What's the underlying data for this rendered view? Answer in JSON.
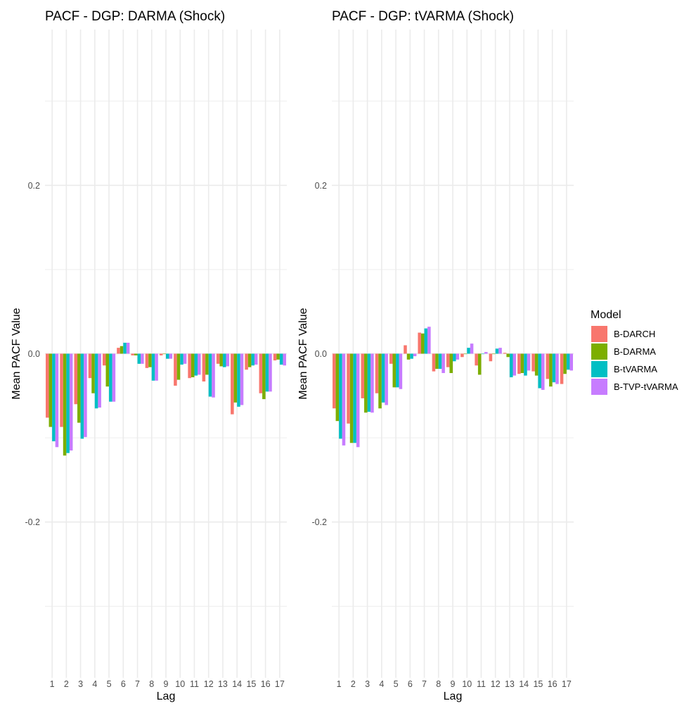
{
  "chart_data": {
    "type": "bar",
    "legend": {
      "title": "Model",
      "position": "right",
      "items": [
        {
          "name": "B-DARCH",
          "color": "#F8766D"
        },
        {
          "name": "B-DARMA",
          "color": "#7CAE00"
        },
        {
          "name": "B-tVARMA",
          "color": "#00BFC4"
        },
        {
          "name": "B-TVP-tVARMA",
          "color": "#C77CFF"
        }
      ]
    },
    "panels": [
      {
        "title": "PACF - DGP: DARMA (Shock)",
        "xlabel": "Lag",
        "ylabel": "Mean PACF Value",
        "ylim": [
          -0.385,
          0.385
        ],
        "yticks": [
          -0.2,
          0.0,
          0.2
        ],
        "ytick_labels": [
          "-0.2",
          "0.0",
          "0.2"
        ],
        "categories": [
          "1",
          "2",
          "3",
          "4",
          "5",
          "6",
          "7",
          "8",
          "9",
          "10",
          "11",
          "12",
          "13",
          "14",
          "15",
          "16",
          "17"
        ],
        "series": [
          {
            "name": "B-DARCH",
            "values": [
              -0.076,
              -0.087,
              -0.06,
              -0.029,
              -0.014,
              0.007,
              -0.002,
              -0.017,
              -0.002,
              -0.038,
              -0.029,
              -0.033,
              -0.012,
              -0.072,
              -0.019,
              -0.047,
              -0.008
            ]
          },
          {
            "name": "B-DARMA",
            "values": [
              -0.087,
              -0.121,
              -0.082,
              -0.047,
              -0.039,
              0.009,
              -0.002,
              -0.016,
              0.0,
              -0.031,
              -0.028,
              -0.025,
              -0.015,
              -0.058,
              -0.016,
              -0.054,
              -0.007
            ]
          },
          {
            "name": "B-tVARMA",
            "values": [
              -0.104,
              -0.118,
              -0.101,
              -0.065,
              -0.057,
              0.013,
              -0.012,
              -0.032,
              -0.006,
              -0.013,
              -0.026,
              -0.051,
              -0.016,
              -0.063,
              -0.014,
              -0.045,
              -0.013
            ]
          },
          {
            "name": "B-TVP-tVARMA",
            "values": [
              -0.111,
              -0.115,
              -0.099,
              -0.064,
              -0.057,
              0.013,
              -0.012,
              -0.032,
              -0.006,
              -0.012,
              -0.025,
              -0.052,
              -0.015,
              -0.061,
              -0.013,
              -0.045,
              -0.014
            ]
          }
        ]
      },
      {
        "title": "PACF - DGP: tVARMA (Shock)",
        "xlabel": "Lag",
        "ylabel": "Mean PACF Value",
        "ylim": [
          -0.385,
          0.385
        ],
        "yticks": [
          -0.2,
          0.0,
          0.2
        ],
        "ytick_labels": [
          "-0.2",
          "0.0",
          "0.2"
        ],
        "categories": [
          "1",
          "2",
          "3",
          "4",
          "5",
          "6",
          "7",
          "8",
          "9",
          "10",
          "11",
          "12",
          "13",
          "14",
          "15",
          "16",
          "17"
        ],
        "series": [
          {
            "name": "B-DARCH",
            "values": [
              -0.065,
              -0.083,
              -0.053,
              -0.047,
              -0.012,
              0.01,
              0.025,
              -0.021,
              -0.016,
              -0.004,
              -0.014,
              -0.009,
              0.001,
              -0.024,
              -0.021,
              -0.03,
              -0.036
            ]
          },
          {
            "name": "B-DARMA",
            "values": [
              -0.08,
              -0.106,
              -0.07,
              -0.065,
              -0.04,
              -0.007,
              0.024,
              -0.018,
              -0.023,
              0.0,
              -0.025,
              0.0,
              -0.004,
              -0.023,
              -0.026,
              -0.039,
              -0.024
            ]
          },
          {
            "name": "B-tVARMA",
            "values": [
              -0.101,
              -0.106,
              -0.069,
              -0.058,
              -0.04,
              -0.006,
              0.03,
              -0.018,
              -0.009,
              0.007,
              0.0,
              0.006,
              -0.028,
              -0.026,
              -0.041,
              -0.034,
              -0.019
            ]
          },
          {
            "name": "B-TVP-tVARMA",
            "values": [
              -0.109,
              -0.111,
              -0.07,
              -0.061,
              -0.042,
              -0.003,
              0.032,
              -0.023,
              -0.007,
              0.012,
              0.002,
              0.007,
              -0.026,
              -0.02,
              -0.043,
              -0.036,
              -0.02
            ]
          }
        ]
      }
    ]
  }
}
